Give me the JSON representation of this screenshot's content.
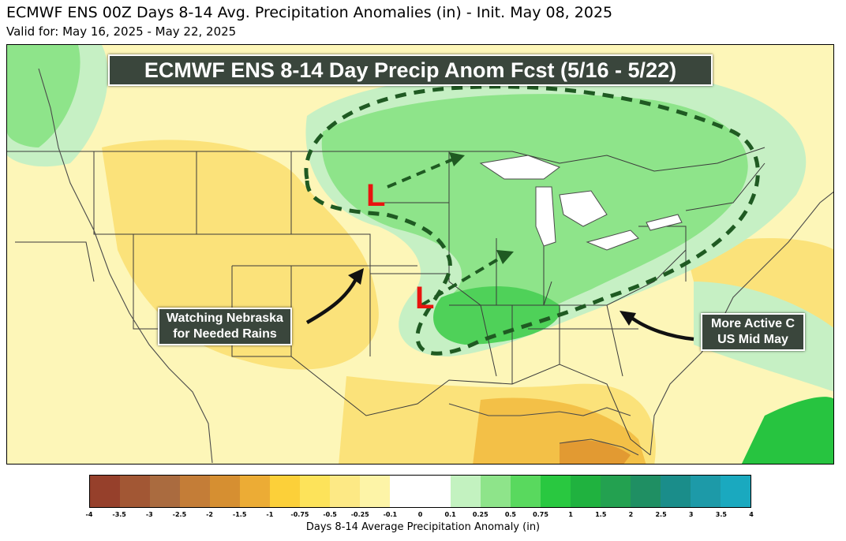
{
  "header": {
    "title": "ECMWF ENS 00Z Days 8-14 Avg. Precipitation Anomalies (in) - Init. May 08, 2025",
    "valid": "Valid for: May 16, 2025 - May 22, 2025"
  },
  "map": {
    "banner": "ECMWF ENS 8-14 Day Precip Anom Fcst (5/16 - 5/22)",
    "lows": [
      {
        "label": "L",
        "name": "northern-plains-low"
      },
      {
        "label": "L",
        "name": "southern-plains-low"
      }
    ],
    "callouts": {
      "nebraska": {
        "line1": "Watching Nebraska",
        "line2": "for Needed Rains"
      },
      "active": {
        "line1": "More Active C",
        "line2": "US Mid May"
      }
    },
    "colors": {
      "dry_light": "#fdf6b8",
      "dry_mid": "#fbe27a",
      "dry_deep": "#f3c047",
      "dry_orange": "#e29a32",
      "wet_light": "#c6f0c4",
      "wet_mid": "#8ee48a",
      "wet_deep": "#4fd159",
      "wet_bright": "#27c440",
      "outline": "#1f5a22",
      "low": "#e8140f"
    }
  },
  "colorbar": {
    "label": "Days 8-14 Average Precipitation Anomaly (in)",
    "ticks": [
      "-4",
      "-3.5",
      "-3",
      "-2.5",
      "-2",
      "-1.5",
      "-1",
      "-0.75",
      "-0.5",
      "-0.25",
      "-0.1",
      "0",
      "0.1",
      "0.25",
      "0.5",
      "0.75",
      "1",
      "1.5",
      "2",
      "2.5",
      "3",
      "3.5",
      "4"
    ],
    "colors": [
      "#96402b",
      "#a25734",
      "#aa6b3f",
      "#c47d37",
      "#d68f31",
      "#ecac35",
      "#fcd039",
      "#fde35a",
      "#fde985",
      "#fdf4a7",
      "#ffffff",
      "#ffffff",
      "#c3f2c0",
      "#8ee48a",
      "#59d95e",
      "#29c840",
      "#20b23f",
      "#23a150",
      "#1f8f63",
      "#1a8d8a",
      "#1d9aa8",
      "#1aa9bf"
    ]
  }
}
